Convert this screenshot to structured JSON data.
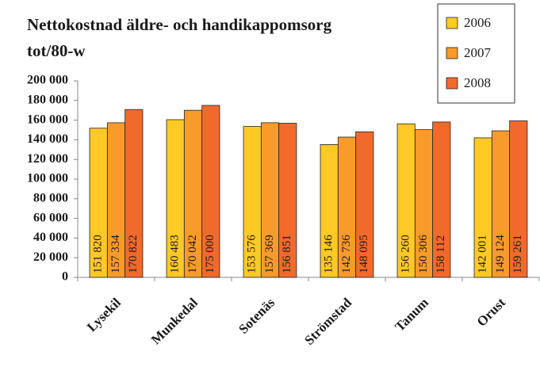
{
  "chart_data": {
    "type": "bar",
    "title": [
      "Nettokostnad äldre- och handikappomsorg",
      "tot/80-w"
    ],
    "categories": [
      "Lysekil",
      "Munkedal",
      "Sotenäs",
      "Strömstad",
      "Tanum",
      "Orust"
    ],
    "series": [
      {
        "name": "2006",
        "color": "#ffc926",
        "values": [
          151820,
          160483,
          153576,
          135146,
          156260,
          142001
        ],
        "value_labels": [
          "151 820",
          "160 483",
          "153 576",
          "135 146",
          "156 260",
          "142 001"
        ]
      },
      {
        "name": "2007",
        "color": "#f99b2b",
        "values": [
          157334,
          170042,
          157369,
          142736,
          150306,
          149124
        ],
        "value_labels": [
          "157 334",
          "170 042",
          "157 369",
          "142 736",
          "150 306",
          "149 124"
        ]
      },
      {
        "name": "2008",
        "color": "#f26a2b",
        "values": [
          170822,
          175000,
          156851,
          148095,
          158112,
          159261
        ],
        "value_labels": [
          "170 822",
          "175 000",
          "156 851",
          "148 095",
          "158 112",
          "159 261"
        ]
      }
    ],
    "ylim": [
      0,
      200000
    ],
    "yticks": [
      0,
      {
        "value": 20000,
        "label": "20 000"
      },
      {
        "value": 40000,
        "label": "40 000"
      },
      {
        "value": 60000,
        "label": "60 000"
      },
      {
        "value": 80000,
        "label": "80 000"
      },
      {
        "value": 100000,
        "label": "100 000"
      },
      {
        "value": 120000,
        "label": "120 000"
      },
      {
        "value": 140000,
        "label": "140 000"
      },
      {
        "value": 160000,
        "label": "160 000"
      },
      {
        "value": 180000,
        "label": "180 000"
      },
      {
        "value": 200000,
        "label": "200 000"
      }
    ],
    "grid": false,
    "legend": "top-right"
  }
}
